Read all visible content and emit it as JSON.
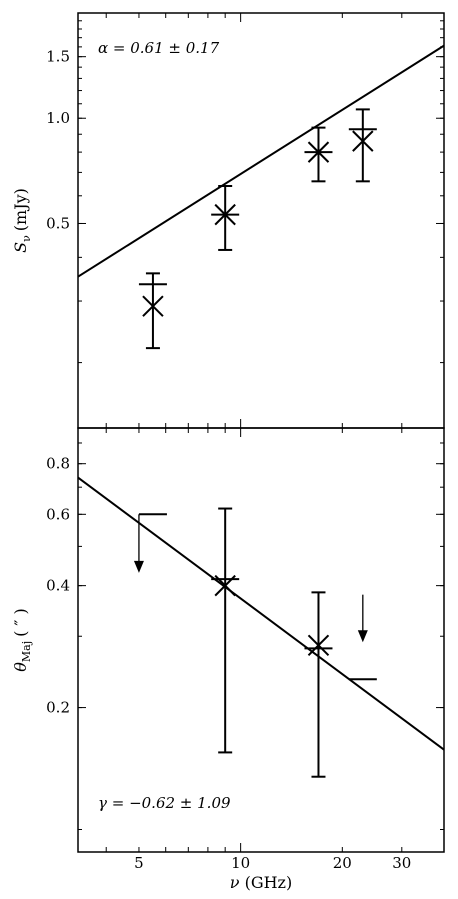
{
  "chart_data": [
    {
      "type": "scatter",
      "panel": "top",
      "xscale": "log",
      "yscale": "log",
      "xlim": [
        3.3,
        40
      ],
      "ylim": [
        0.13,
        2.0
      ],
      "ylabel": "S_ν (mJy)",
      "ylabel_main": "S",
      "ylabel_sub": "ν",
      "ylabel_unit": "(mJy)",
      "yticks": [
        {
          "value": 0.5,
          "label": "0.5"
        },
        {
          "value": 1.0,
          "label": "1.0"
        },
        {
          "value": 1.5,
          "label": "1.5"
        }
      ],
      "annotation": "α = 0.61 ± 0.17",
      "points": [
        {
          "x": 5.5,
          "y": 0.29,
          "yerr_low": 0.07,
          "yerr_high": 0.07,
          "xbar_y": 0.335
        },
        {
          "x": 9.0,
          "y": 0.53,
          "yerr_low": 0.11,
          "yerr_high": 0.11,
          "xbar_y": 0.53
        },
        {
          "x": 17.0,
          "y": 0.8,
          "yerr_low": 0.14,
          "yerr_high": 0.14,
          "xbar_y": 0.8
        },
        {
          "x": 23.0,
          "y": 0.86,
          "yerr_low": 0.2,
          "yerr_high": 0.2,
          "xbar_y": 0.93
        }
      ],
      "fit": {
        "slope": 0.61,
        "norm": 0.17
      }
    },
    {
      "type": "scatter",
      "panel": "bottom",
      "xscale": "log",
      "yscale": "log",
      "xlim": [
        3.3,
        40
      ],
      "ylim": [
        0.088,
        0.98
      ],
      "ylabel": "θ_Maj (″)",
      "ylabel_main": "θ",
      "ylabel_sub": "Maj",
      "ylabel_unit": "( ″ )",
      "xlabel": "ν (GHz)",
      "xlabel_main": "ν",
      "xlabel_unit": "(GHz)",
      "yticks": [
        {
          "value": 0.2,
          "label": "0.2"
        },
        {
          "value": 0.4,
          "label": "0.4"
        },
        {
          "value": 0.6,
          "label": "0.6"
        },
        {
          "value": 0.8,
          "label": "0.8"
        }
      ],
      "xticks": [
        {
          "value": 5,
          "label": "5"
        },
        {
          "value": 10,
          "label": "10"
        },
        {
          "value": 20,
          "label": "20"
        },
        {
          "value": 30,
          "label": "30"
        }
      ],
      "annotation": "γ = −0.62 ± 1.09",
      "points": [
        {
          "x": 9.0,
          "y": 0.4,
          "yerr_low": 0.245,
          "yerr_high": 0.22,
          "xbar_y": 0.415
        },
        {
          "x": 17.0,
          "y": 0.285,
          "yerr_low": 0.15,
          "yerr_high": 0.1,
          "xbar_y": 0.28
        }
      ],
      "upper_limits": [
        {
          "x": 5.5,
          "y": 0.6,
          "arrow_to": 0.43
        },
        {
          "x": 23.0,
          "y": 0.235,
          "arrow_from": 0.38,
          "arrow_to": 0.29
        }
      ],
      "fit": {
        "slope": -0.62,
        "norm": 1.55
      }
    }
  ]
}
